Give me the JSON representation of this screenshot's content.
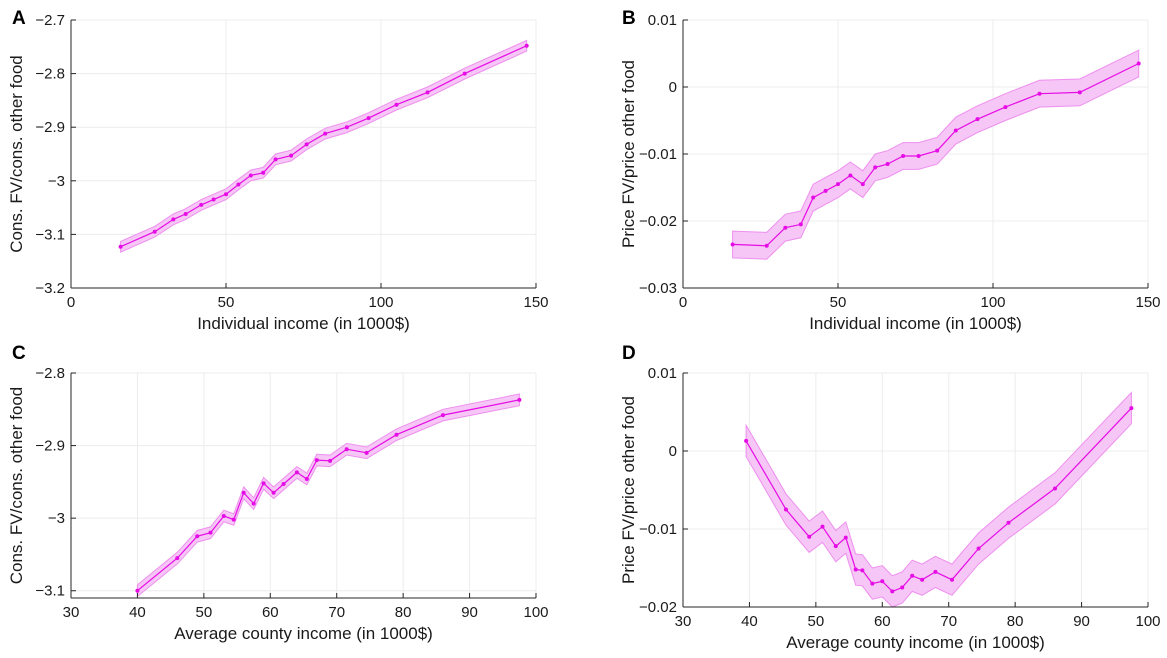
{
  "colors": {
    "series": "#e60ce6",
    "band_fill": "#f6c6f6",
    "band_edge": "#ee8fee"
  },
  "chart_data": [
    {
      "panel": "A",
      "type": "line",
      "xlabel": "Individual income (in 1000$)",
      "ylabel": "Cons. FV/cons. other food",
      "xlim": [
        0,
        150
      ],
      "ylim": [
        -3.2,
        -2.7
      ],
      "xticks": [
        0,
        50,
        100,
        150
      ],
      "yticks": [
        -3.2,
        -3.1,
        -3,
        -2.9,
        -2.8,
        -2.7
      ],
      "xtick_labels": [
        "0",
        "50",
        "100",
        "150"
      ],
      "ytick_labels": [
        "-3.2",
        "-3.1",
        "-3",
        "-2.9",
        "-2.8",
        "-2.7"
      ],
      "grid": true,
      "x": [
        16,
        27,
        33,
        37,
        42,
        46,
        50,
        54,
        58,
        62,
        66,
        71,
        76,
        82,
        89,
        96,
        105,
        115,
        127,
        147
      ],
      "y": [
        -3.123,
        -3.095,
        -3.072,
        -3.062,
        -3.045,
        -3.035,
        -3.025,
        -3.007,
        -2.99,
        -2.985,
        -2.96,
        -2.953,
        -2.932,
        -2.912,
        -2.9,
        -2.883,
        -2.858,
        -2.835,
        -2.8,
        -2.748
      ],
      "ci": 0.01
    },
    {
      "panel": "B",
      "type": "line",
      "xlabel": "Individual income (in 1000$)",
      "ylabel": "Price FV/price other food",
      "xlim": [
        0,
        150
      ],
      "ylim": [
        -0.03,
        0.01
      ],
      "xticks": [
        0,
        50,
        100,
        150
      ],
      "yticks": [
        -0.03,
        -0.02,
        -0.01,
        0,
        0.01
      ],
      "xtick_labels": [
        "0",
        "50",
        "100",
        "150"
      ],
      "ytick_labels": [
        "-0.03",
        "-0.02",
        "-0.01",
        "0",
        "0.01"
      ],
      "grid": true,
      "x": [
        16,
        27,
        33,
        38,
        42,
        46,
        50,
        54,
        58,
        62,
        66,
        71,
        76,
        82,
        88,
        95,
        104,
        115,
        128,
        147
      ],
      "y": [
        -0.0235,
        -0.0237,
        -0.021,
        -0.0205,
        -0.0165,
        -0.0155,
        -0.0145,
        -0.0132,
        -0.0145,
        -0.012,
        -0.0115,
        -0.0103,
        -0.0103,
        -0.0095,
        -0.0065,
        -0.0048,
        -0.003,
        -0.001,
        -0.0008,
        0.0035
      ],
      "ci": 0.002
    },
    {
      "panel": "C",
      "type": "line",
      "xlabel": "Average county income (in 1000$)",
      "ylabel": "Cons. FV/cons. other food",
      "xlim": [
        30,
        100
      ],
      "ylim": [
        -3.11,
        -2.8
      ],
      "xticks": [
        30,
        40,
        50,
        60,
        70,
        80,
        90,
        100
      ],
      "yticks": [
        -3.1,
        -3,
        -2.9,
        -2.8
      ],
      "xtick_labels": [
        "30",
        "40",
        "50",
        "60",
        "70",
        "80",
        "90",
        "100"
      ],
      "ytick_labels": [
        "-3.1",
        "-3",
        "-2.9",
        "-2.8"
      ],
      "grid": true,
      "x": [
        40,
        46,
        49,
        51,
        53,
        54.5,
        56,
        57.5,
        59,
        60.5,
        62,
        64,
        65.5,
        67,
        69,
        71.5,
        74.5,
        79,
        86,
        97.5
      ],
      "y": [
        -3.1,
        -3.055,
        -3.025,
        -3.02,
        -2.997,
        -3.002,
        -2.965,
        -2.98,
        -2.952,
        -2.965,
        -2.953,
        -2.937,
        -2.946,
        -2.92,
        -2.921,
        -2.905,
        -2.91,
        -2.885,
        -2.858,
        -2.837
      ],
      "ci": 0.008
    },
    {
      "panel": "D",
      "type": "line",
      "xlabel": "Average county income (in 1000$)",
      "ylabel": "Price FV/price other food",
      "xlim": [
        30,
        100
      ],
      "ylim": [
        -0.02,
        0.01
      ],
      "xticks": [
        30,
        40,
        50,
        60,
        70,
        80,
        90,
        100
      ],
      "yticks": [
        -0.02,
        -0.01,
        0,
        0.01
      ],
      "xtick_labels": [
        "30",
        "40",
        "50",
        "60",
        "70",
        "80",
        "90",
        "100"
      ],
      "ytick_labels": [
        "-0.02",
        "-0.01",
        "0",
        "0.01"
      ],
      "grid": true,
      "x": [
        39.5,
        45.5,
        49,
        51,
        53,
        54.5,
        56,
        57,
        58.5,
        60,
        61.5,
        63,
        64.5,
        66,
        68,
        70.5,
        74.5,
        79,
        86,
        97.5
      ],
      "y": [
        0.0013,
        -0.0075,
        -0.011,
        -0.0097,
        -0.0122,
        -0.0111,
        -0.0152,
        -0.0153,
        -0.017,
        -0.0167,
        -0.018,
        -0.0175,
        -0.016,
        -0.0165,
        -0.0155,
        -0.0165,
        -0.0125,
        -0.0092,
        -0.0048,
        0.0055
      ],
      "ci": 0.002
    }
  ]
}
